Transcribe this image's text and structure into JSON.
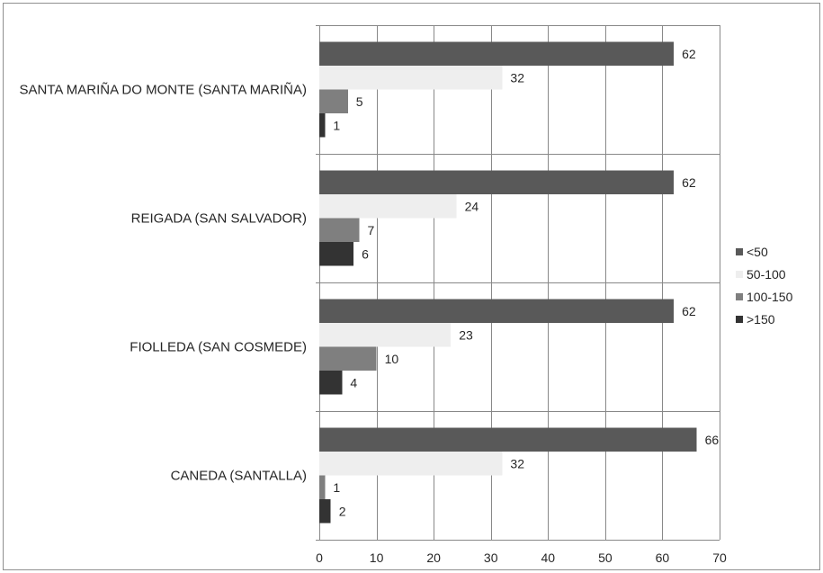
{
  "chart_data": {
    "type": "bar",
    "horizontal": true,
    "categories": [
      "SANTA MARIÑA DO MONTE (SANTA MARIÑA)",
      "REIGADA (SAN SALVADOR)",
      "FIOLLEDA (SAN COSMEDE)",
      "CANEDA (SANTALLA)"
    ],
    "series": [
      {
        "name": "<50",
        "color": "#595959",
        "values": [
          62,
          62,
          62,
          66
        ]
      },
      {
        "name": "50-100",
        "color": "#eeeeee",
        "values": [
          32,
          24,
          23,
          32
        ]
      },
      {
        "name": "100-150",
        "color": "#7f7f7f",
        "values": [
          5,
          7,
          10,
          1
        ]
      },
      {
        "name": ">150",
        "color": "#333333",
        "values": [
          1,
          6,
          4,
          2
        ]
      }
    ],
    "xlim": [
      0,
      70
    ],
    "xticks": [
      0,
      10,
      20,
      30,
      40,
      50,
      60,
      70
    ],
    "grid": true,
    "data_labels": true,
    "legend": "right"
  }
}
